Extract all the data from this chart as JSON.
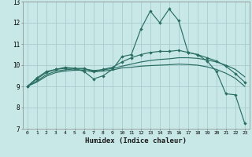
{
  "xlabel": "Humidex (Indice chaleur)",
  "bg_color": "#c8e8e8",
  "grid_color": "#a8cccc",
  "line_color": "#2a6e62",
  "xlim": [
    -0.5,
    23.5
  ],
  "ylim": [
    7,
    13
  ],
  "xticks": [
    0,
    1,
    2,
    3,
    4,
    5,
    6,
    7,
    8,
    9,
    10,
    11,
    12,
    13,
    14,
    15,
    16,
    17,
    18,
    19,
    20,
    21,
    22,
    23
  ],
  "yticks": [
    7,
    8,
    9,
    10,
    11,
    12,
    13
  ],
  "lines": [
    {
      "x": [
        0,
        1,
        2,
        3,
        4,
        5,
        6,
        7,
        8,
        9,
        10,
        11,
        12,
        13,
        14,
        15,
        16,
        17,
        18,
        19,
        20,
        21,
        22,
        23
      ],
      "y": [
        9.0,
        9.4,
        9.7,
        9.8,
        9.9,
        9.85,
        9.7,
        9.35,
        9.5,
        9.8,
        10.4,
        10.5,
        11.7,
        12.55,
        12.0,
        12.65,
        12.1,
        10.6,
        10.5,
        10.2,
        9.7,
        8.65,
        8.6,
        7.25
      ],
      "marker": true
    },
    {
      "x": [
        0,
        1,
        2,
        3,
        4,
        5,
        6,
        7,
        8,
        9,
        10,
        11,
        12,
        13,
        14,
        15,
        16,
        17,
        18,
        19,
        20,
        21,
        22,
        23
      ],
      "y": [
        9.0,
        9.35,
        9.65,
        9.8,
        9.85,
        9.85,
        9.85,
        9.7,
        9.8,
        9.9,
        10.15,
        10.35,
        10.5,
        10.6,
        10.65,
        10.65,
        10.7,
        10.6,
        10.5,
        10.35,
        10.2,
        9.95,
        9.6,
        9.2
      ],
      "marker": true
    },
    {
      "x": [
        0,
        1,
        2,
        3,
        4,
        5,
        6,
        7,
        8,
        9,
        10,
        11,
        12,
        13,
        14,
        15,
        16,
        17,
        18,
        19,
        20,
        21,
        22,
        23
      ],
      "y": [
        9.0,
        9.25,
        9.55,
        9.72,
        9.78,
        9.82,
        9.82,
        9.75,
        9.78,
        9.84,
        9.95,
        10.05,
        10.15,
        10.22,
        10.27,
        10.3,
        10.35,
        10.35,
        10.32,
        10.25,
        10.15,
        10.0,
        9.8,
        9.45
      ],
      "marker": false
    },
    {
      "x": [
        0,
        1,
        2,
        3,
        4,
        5,
        6,
        7,
        8,
        9,
        10,
        11,
        12,
        13,
        14,
        15,
        16,
        17,
        18,
        19,
        20,
        21,
        22,
        23
      ],
      "y": [
        9.0,
        9.2,
        9.48,
        9.65,
        9.72,
        9.76,
        9.76,
        9.68,
        9.72,
        9.77,
        9.87,
        9.9,
        9.95,
        9.98,
        10.0,
        10.02,
        10.05,
        10.03,
        10.0,
        9.92,
        9.8,
        9.62,
        9.38,
        9.0
      ],
      "marker": false
    }
  ]
}
